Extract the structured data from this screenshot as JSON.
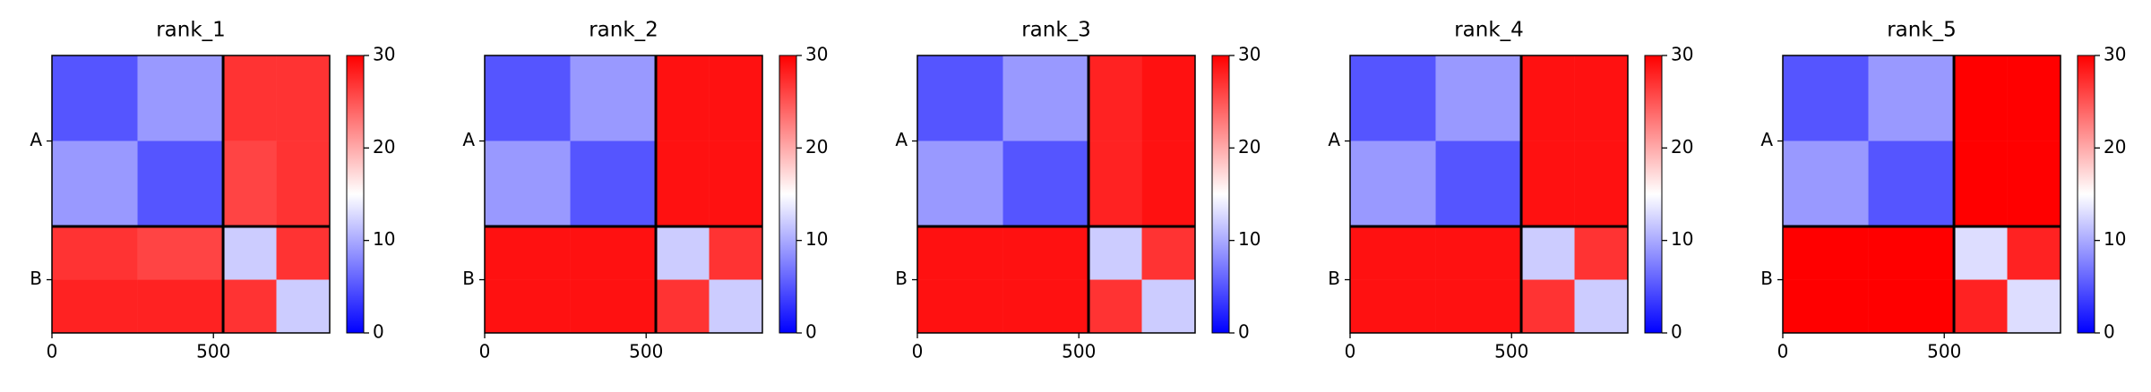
{
  "chart_data": [
    {
      "type": "heatmap",
      "title": "rank_1",
      "bins": [
        0,
        265,
        530,
        695,
        860
      ],
      "values": [
        [
          5,
          9,
          27,
          27
        ],
        [
          9,
          5,
          26,
          27
        ],
        [
          27,
          26,
          12,
          27
        ],
        [
          28,
          28,
          27,
          12
        ]
      ],
      "boundaries": [
        530
      ],
      "xlim": [
        0,
        860
      ],
      "ylim": [
        860,
        0
      ],
      "xticks": [
        0,
        500
      ],
      "yticks": [
        {
          "value": 265,
          "label": "A"
        },
        {
          "value": 695,
          "label": "B"
        }
      ],
      "clim": [
        0,
        30
      ],
      "cticks": [
        0,
        10,
        20,
        30
      ],
      "colormap": [
        "#0000ff",
        "#ffffff",
        "#ff0000"
      ]
    },
    {
      "type": "heatmap",
      "title": "rank_2",
      "bins": [
        0,
        265,
        530,
        695,
        860
      ],
      "values": [
        [
          5,
          9,
          29,
          29
        ],
        [
          9,
          5,
          29,
          29
        ],
        [
          29,
          29,
          12,
          27
        ],
        [
          29,
          29,
          27,
          12
        ]
      ],
      "boundaries": [
        530
      ],
      "xlim": [
        0,
        860
      ],
      "ylim": [
        860,
        0
      ],
      "xticks": [
        0,
        500
      ],
      "yticks": [
        {
          "value": 265,
          "label": "A"
        },
        {
          "value": 695,
          "label": "B"
        }
      ],
      "clim": [
        0,
        30
      ],
      "cticks": [
        0,
        10,
        20,
        30
      ],
      "colormap": [
        "#0000ff",
        "#ffffff",
        "#ff0000"
      ]
    },
    {
      "type": "heatmap",
      "title": "rank_3",
      "bins": [
        0,
        265,
        530,
        695,
        860
      ],
      "values": [
        [
          5,
          9,
          28,
          29
        ],
        [
          9,
          5,
          28,
          29
        ],
        [
          29,
          29,
          12,
          27
        ],
        [
          29,
          29,
          27,
          12
        ]
      ],
      "boundaries": [
        530
      ],
      "xlim": [
        0,
        860
      ],
      "ylim": [
        860,
        0
      ],
      "xticks": [
        0,
        500
      ],
      "yticks": [
        {
          "value": 265,
          "label": "A"
        },
        {
          "value": 695,
          "label": "B"
        }
      ],
      "clim": [
        0,
        30
      ],
      "cticks": [
        0,
        10,
        20,
        30
      ],
      "colormap": [
        "#0000ff",
        "#ffffff",
        "#ff0000"
      ]
    },
    {
      "type": "heatmap",
      "title": "rank_4",
      "bins": [
        0,
        265,
        530,
        695,
        860
      ],
      "values": [
        [
          5,
          9,
          29,
          29
        ],
        [
          9,
          5,
          29,
          29
        ],
        [
          29,
          29,
          12,
          27
        ],
        [
          29,
          29,
          27,
          12
        ]
      ],
      "boundaries": [
        530
      ],
      "xlim": [
        0,
        860
      ],
      "ylim": [
        860,
        0
      ],
      "xticks": [
        0,
        500
      ],
      "yticks": [
        {
          "value": 265,
          "label": "A"
        },
        {
          "value": 695,
          "label": "B"
        }
      ],
      "clim": [
        0,
        30
      ],
      "cticks": [
        0,
        10,
        20,
        30
      ],
      "colormap": [
        "#0000ff",
        "#ffffff",
        "#ff0000"
      ]
    },
    {
      "type": "heatmap",
      "title": "rank_5",
      "bins": [
        0,
        265,
        530,
        695,
        860
      ],
      "values": [
        [
          5,
          9,
          30,
          30
        ],
        [
          9,
          5,
          30,
          30
        ],
        [
          30,
          30,
          13,
          28
        ],
        [
          30,
          30,
          28,
          13
        ]
      ],
      "boundaries": [
        530
      ],
      "xlim": [
        0,
        860
      ],
      "ylim": [
        860,
        0
      ],
      "xticks": [
        0,
        500
      ],
      "yticks": [
        {
          "value": 265,
          "label": "A"
        },
        {
          "value": 695,
          "label": "B"
        }
      ],
      "clim": [
        0,
        30
      ],
      "cticks": [
        0,
        10,
        20,
        30
      ],
      "colormap": [
        "#0000ff",
        "#ffffff",
        "#ff0000"
      ]
    }
  ]
}
